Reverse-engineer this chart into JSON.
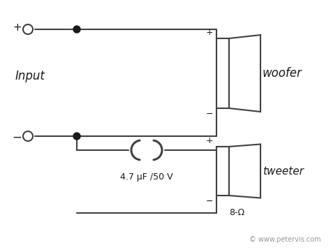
{
  "bg_color": "#ffffff",
  "line_color": "#404040",
  "line_width": 1.5,
  "dot_color": "#1a1a1a",
  "text_color": "#1a1a1a",
  "input_label": "Input",
  "woofer_label": "woofer",
  "tweeter_label": "tweeter",
  "cap_label": "4.7 μF /50 V",
  "ohm_label": "8-Ω",
  "watermark": "© www.petervis.com"
}
